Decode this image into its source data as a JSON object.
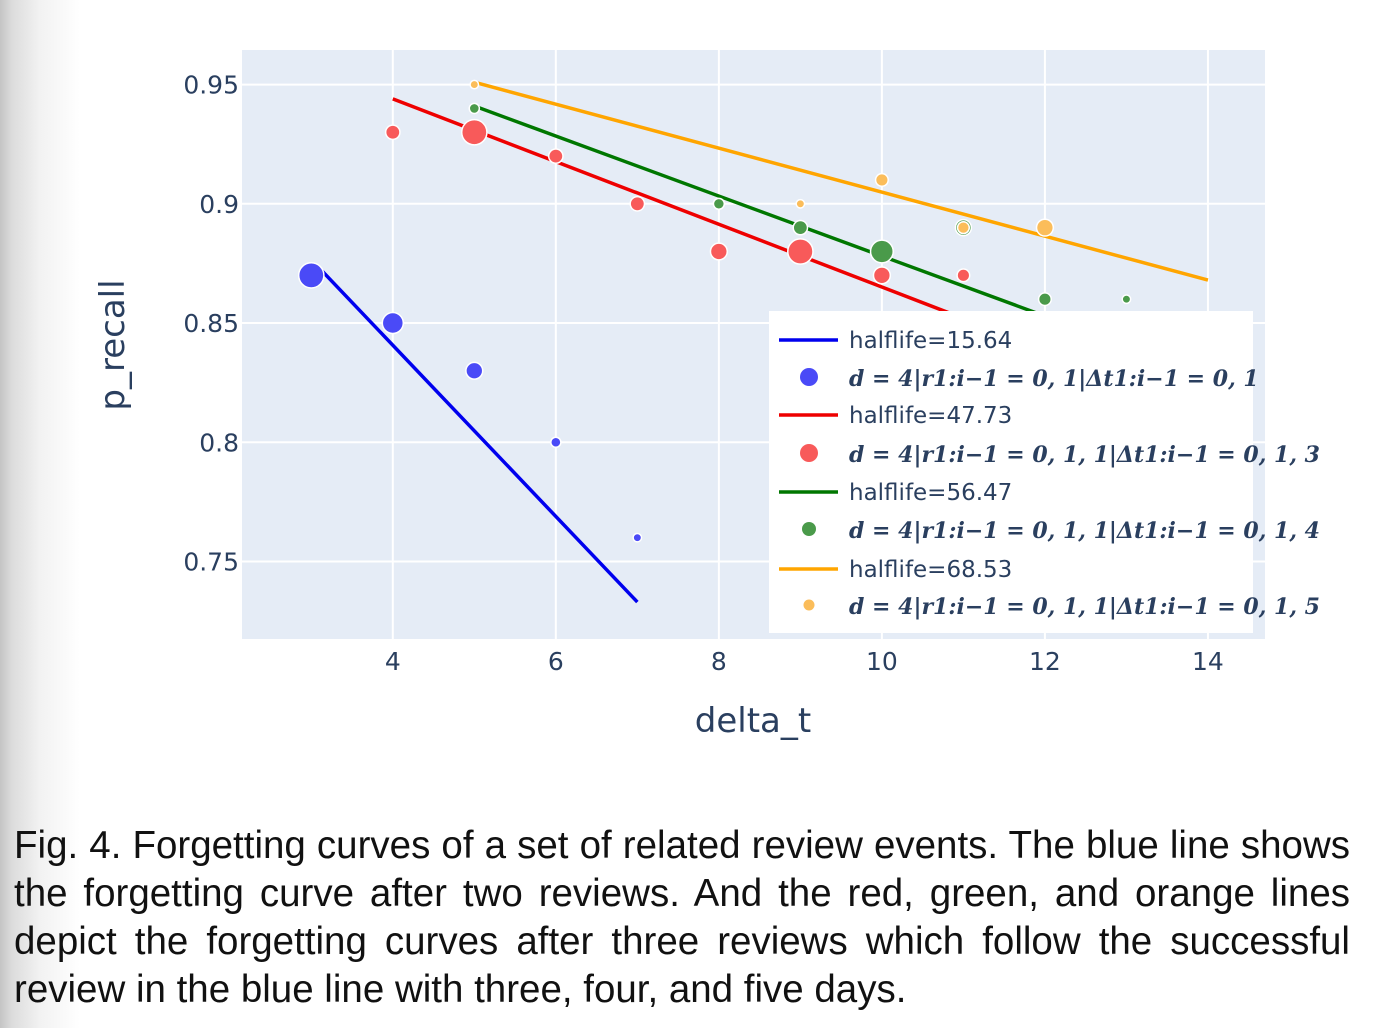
{
  "chart_data": {
    "type": "scatter",
    "xlabel": "delta_t",
    "ylabel": "p_recall",
    "xlim": [
      2.15,
      14.7
    ],
    "ylim": [
      0.7175,
      0.9645
    ],
    "grid": true,
    "legend_position": "bottom-right",
    "xticks": [
      4,
      6,
      8,
      10,
      12,
      14
    ],
    "xtick_labels": [
      "4",
      "6",
      "8",
      "10",
      "12",
      "14"
    ],
    "yticks": [
      0.75,
      0.8,
      0.85,
      0.9,
      0.95
    ],
    "ytick_labels": [
      "0.75",
      "0.8",
      "0.85",
      "0.9",
      "0.95"
    ],
    "series": [
      {
        "line_name": "halflife=15.64",
        "points_name": "d = 4|r1:i−1 = 0, 1|Δt1:i−1 = 0, 1",
        "color": "#0000ee",
        "marker_color": "#4a4af7",
        "line": [
          [
            3.1,
            0.873
          ],
          [
            7.0,
            0.733
          ]
        ],
        "points": [
          {
            "x": 3,
            "y": 0.87,
            "size": 3
          },
          {
            "x": 4,
            "y": 0.85,
            "size": 2.5
          },
          {
            "x": 5,
            "y": 0.83,
            "size": 2
          },
          {
            "x": 6,
            "y": 0.8,
            "size": 1.2
          },
          {
            "x": 7,
            "y": 0.76,
            "size": 1
          }
        ]
      },
      {
        "line_name": "halflife=47.73",
        "points_name": "d = 4|r1:i−1 = 0, 1, 1|Δt1:i−1 = 0, 1, 3",
        "color": "#ee0000",
        "marker_color": "#f85a5a",
        "line": [
          [
            4.0,
            0.944
          ],
          [
            11.3,
            0.848
          ]
        ],
        "points": [
          {
            "x": 4,
            "y": 0.93,
            "size": 1.7
          },
          {
            "x": 5,
            "y": 0.93,
            "size": 3
          },
          {
            "x": 6,
            "y": 0.92,
            "size": 1.7
          },
          {
            "x": 7,
            "y": 0.9,
            "size": 1.7
          },
          {
            "x": 8,
            "y": 0.88,
            "size": 2
          },
          {
            "x": 9,
            "y": 0.88,
            "size": 3
          },
          {
            "x": 10,
            "y": 0.87,
            "size": 2
          },
          {
            "x": 11,
            "y": 0.87,
            "size": 1.5
          }
        ]
      },
      {
        "line_name": "halflife=56.47",
        "points_name": "d = 4|r1:i−1 = 0, 1, 1|Δt1:i−1 = 0, 1, 4",
        "color": "#007700",
        "marker_color": "#4a9a4a",
        "line": [
          [
            5.0,
            0.941
          ],
          [
            12.55,
            0.846
          ]
        ],
        "points": [
          {
            "x": 5,
            "y": 0.94,
            "size": 1.2
          },
          {
            "x": 8,
            "y": 0.9,
            "size": 1.3
          },
          {
            "x": 9,
            "y": 0.89,
            "size": 1.7
          },
          {
            "x": 10,
            "y": 0.88,
            "size": 2.7
          },
          {
            "x": 11,
            "y": 0.89,
            "size": 1.9
          },
          {
            "x": 12,
            "y": 0.86,
            "size": 1.5
          },
          {
            "x": 13,
            "y": 0.86,
            "size": 1
          }
        ]
      },
      {
        "line_name": "halflife=68.53",
        "points_name": "d = 4|r1:i−1 = 0, 1, 1|Δt1:i−1 = 0, 1, 5",
        "color": "#ffa500",
        "marker_color": "#fbbd5a",
        "line": [
          [
            5.0,
            0.951
          ],
          [
            14.0,
            0.868
          ]
        ],
        "points": [
          {
            "x": 5,
            "y": 0.95,
            "size": 1
          },
          {
            "x": 9,
            "y": 0.9,
            "size": 1
          },
          {
            "x": 10,
            "y": 0.91,
            "size": 1.5
          },
          {
            "x": 11,
            "y": 0.89,
            "size": 1.4
          },
          {
            "x": 12,
            "y": 0.89,
            "size": 2
          }
        ]
      }
    ]
  },
  "caption": "Fig. 4. Forgetting curves of a set of related review events. The blue line shows the forgetting curve after two reviews. And the red, green, and orange lines depict the forgetting curves after three reviews which follow the successful review in the blue line with three, four, and five days."
}
